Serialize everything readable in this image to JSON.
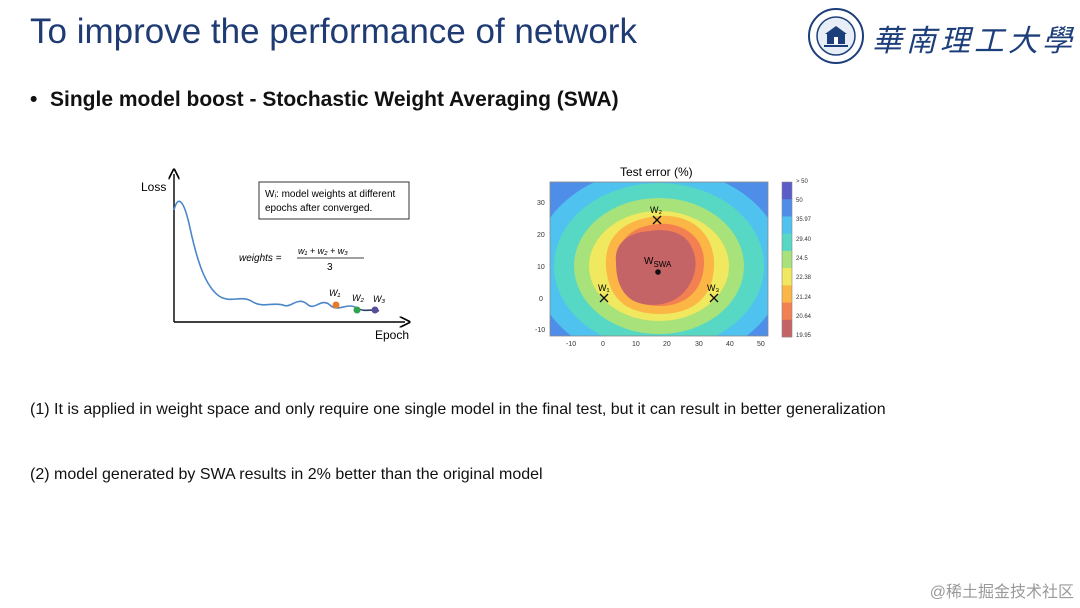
{
  "title": "To improve the performance of network",
  "university_name": "華南理工大學",
  "bullet": "Single model boost - Stochastic Weight Averaging (SWA)",
  "loss_figure": {
    "y_label": "Loss",
    "x_label": "Epoch",
    "note_line1": "Wᵢ: model weights at different",
    "note_line2": "epochs after converged.",
    "formula_lhs": "weights =",
    "formula_num": "w₁ + w₂ + w₃",
    "formula_den": "3",
    "w1": "W₁",
    "w2": "W₂",
    "w3": "W₃"
  },
  "contour_figure": {
    "title": "Test error (%)",
    "w1": "W₁",
    "w2": "W₂",
    "w3": "W₃",
    "wswa": "W",
    "wswa_sub": "SWA"
  },
  "chart_data": {
    "type": "heatmap",
    "title": "Test error (%)",
    "x_ticks": [
      "-10",
      "0",
      "10",
      "20",
      "30",
      "40",
      "50"
    ],
    "y_ticks": [
      "30",
      "20",
      "10",
      "0",
      "-10"
    ],
    "xlim": [
      -15,
      53
    ],
    "ylim": [
      -12,
      37
    ],
    "colorbar_labels": [
      "> 50",
      "50",
      "35.97",
      "29.40",
      "24.5",
      "22.38",
      "21.24",
      "20.64",
      "19.95"
    ],
    "colorbar_colors": [
      "#5a5cc8",
      "#4f8ee8",
      "#4fc2ef",
      "#56d8c4",
      "#a8e27a",
      "#f0e85e",
      "#fbb646",
      "#f38050",
      "#c56466"
    ],
    "points": [
      {
        "name": "W1",
        "x": 0,
        "y": 0
      },
      {
        "name": "W2",
        "x": 17,
        "y": 24
      },
      {
        "name": "W3",
        "x": 36,
        "y": 0
      },
      {
        "name": "WSWA",
        "x": 17,
        "y": 8
      }
    ]
  },
  "paragraph1": "(1) It is applied in weight space and only require one single model in the final test, but it can result in better generalization",
  "paragraph2": "(2) model generated by SWA results in 2% better than the original model",
  "watermark": "@稀土掘金技术社区"
}
